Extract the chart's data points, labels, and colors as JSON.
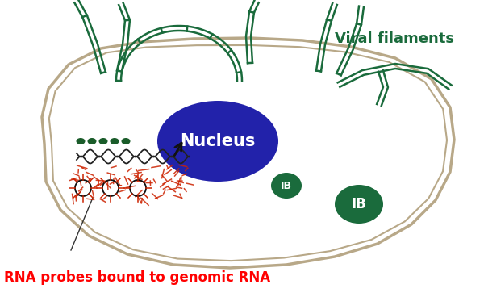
{
  "bg_color": "#ffffff",
  "cell_color": "#b8a888",
  "cell_linewidth_outer": 2.5,
  "cell_linewidth_inner": 1.5,
  "nucleus_color": "#2222aa",
  "nucleus_text": "Nucleus",
  "nucleus_text_color": "#ffffff",
  "nucleus_fontsize": 15,
  "ib_color": "#1a6b3c",
  "ib_text": "IB",
  "ib_text_color": "#ffffff",
  "viral_filament_color": "#1a6b3c",
  "probe_dot_color": "#1a5c2a",
  "rna_scatter_color": "#cc2200",
  "circle_color": "#111111",
  "arrow_color": "#111111",
  "label_rna": "RNA probes bound to genomic RNA",
  "label_rna_color": "#ff0000",
  "label_rna_fontsize": 12,
  "label_viral": "Viral filaments",
  "label_viral_color": "#1a6b3c",
  "label_viral_fontsize": 13,
  "figsize": [
    6.0,
    3.68
  ],
  "dpi": 100
}
